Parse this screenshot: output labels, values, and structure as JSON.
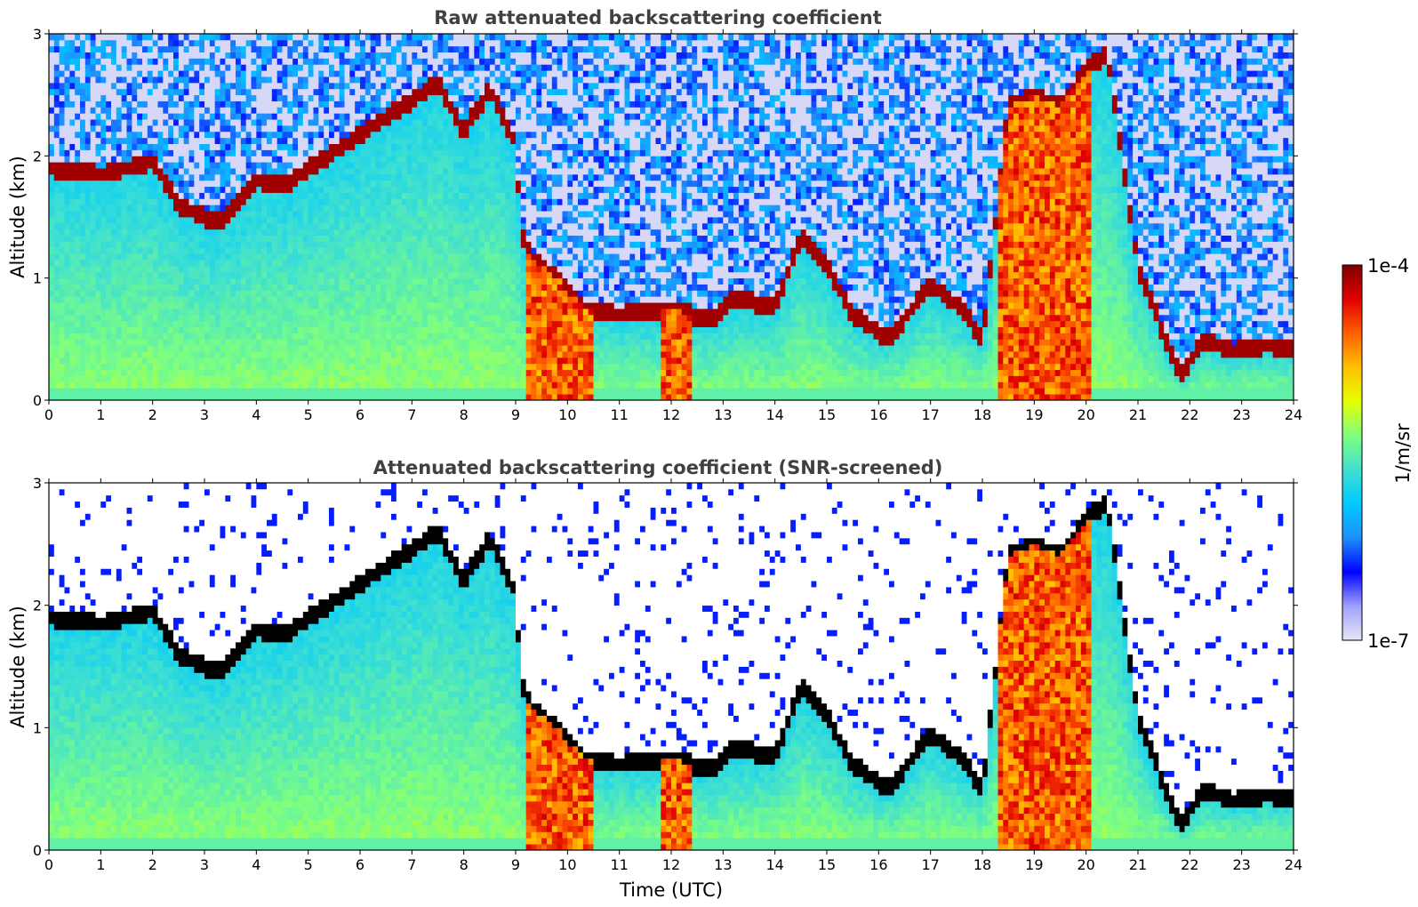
{
  "chart_data": [
    {
      "type": "heatmap",
      "title": "Raw attenuated backscattering coefficient",
      "xlabel": "",
      "ylabel": "Altitude (km)",
      "xlim": [
        0,
        24
      ],
      "ylim": [
        0,
        3
      ],
      "xticks": [
        "0",
        "1",
        "2",
        "3",
        "4",
        "5",
        "6",
        "7",
        "8",
        "9",
        "10",
        "11",
        "12",
        "13",
        "14",
        "15",
        "16",
        "17",
        "18",
        "19",
        "20",
        "21",
        "22",
        "23",
        "24"
      ],
      "yticks": [
        "0",
        "1",
        "2",
        "3"
      ],
      "screened": false,
      "cloud_base_km": [
        [
          0,
          1.9
        ],
        [
          1,
          1.85
        ],
        [
          1.5,
          1.9
        ],
        [
          2,
          1.95
        ],
        [
          2.5,
          1.6
        ],
        [
          3,
          1.5
        ],
        [
          3.3,
          1.45
        ],
        [
          4,
          1.8
        ],
        [
          4.5,
          1.75
        ],
        [
          7.5,
          2.6
        ],
        [
          8,
          2.2
        ],
        [
          8.5,
          2.55
        ],
        [
          9,
          2.1
        ],
        [
          9.1,
          1.4
        ],
        [
          9.3,
          1.15
        ],
        [
          9.8,
          1.0
        ],
        [
          10.3,
          0.75
        ],
        [
          11,
          0.7
        ],
        [
          12,
          0.75
        ],
        [
          12.8,
          0.65
        ],
        [
          13.2,
          0.85
        ],
        [
          14,
          0.75
        ],
        [
          14.5,
          1.35
        ],
        [
          15,
          1.1
        ],
        [
          15.5,
          0.7
        ],
        [
          16.2,
          0.5
        ],
        [
          17,
          0.95
        ],
        [
          17.6,
          0.75
        ],
        [
          18,
          0.5
        ],
        [
          18.5,
          2.4
        ],
        [
          19,
          2.5
        ],
        [
          19.5,
          2.4
        ],
        [
          20,
          2.7
        ],
        [
          20.4,
          2.85
        ],
        [
          21,
          1.1
        ],
        [
          21.8,
          0.2
        ],
        [
          22.3,
          0.5
        ],
        [
          22.8,
          0.4
        ],
        [
          23.5,
          0.45
        ],
        [
          24,
          0.4
        ]
      ],
      "precip_bands_utc": [
        [
          9.2,
          10.5
        ],
        [
          11.8,
          12.4
        ],
        [
          18.3,
          20.1
        ]
      ]
    },
    {
      "type": "heatmap",
      "title": "Attenuated backscattering coefficient (SNR-screened)",
      "xlabel": "Time (UTC)",
      "ylabel": "Altitude (km)",
      "xlim": [
        0,
        24
      ],
      "ylim": [
        0,
        3
      ],
      "xticks": [
        "0",
        "1",
        "2",
        "3",
        "4",
        "5",
        "6",
        "7",
        "8",
        "9",
        "10",
        "11",
        "12",
        "13",
        "14",
        "15",
        "16",
        "17",
        "18",
        "19",
        "20",
        "21",
        "22",
        "23",
        "24"
      ],
      "yticks": [
        "0",
        "1",
        "2",
        "3"
      ],
      "screened": true
    }
  ],
  "colorbar": {
    "label": "1/m/sr",
    "max_label": "1e-4",
    "min_label": "1e-7",
    "colormap": [
      "#e6e6f5",
      "#a0a0ff",
      "#0000ff",
      "#1e90ff",
      "#00c8ff",
      "#40e0d0",
      "#7fff7f",
      "#e6ff00",
      "#ffc000",
      "#ff6000",
      "#e00000",
      "#800000"
    ]
  },
  "colors": {
    "cloud_top_edge": "#000000",
    "axis": "#000000",
    "title": "#404040"
  }
}
